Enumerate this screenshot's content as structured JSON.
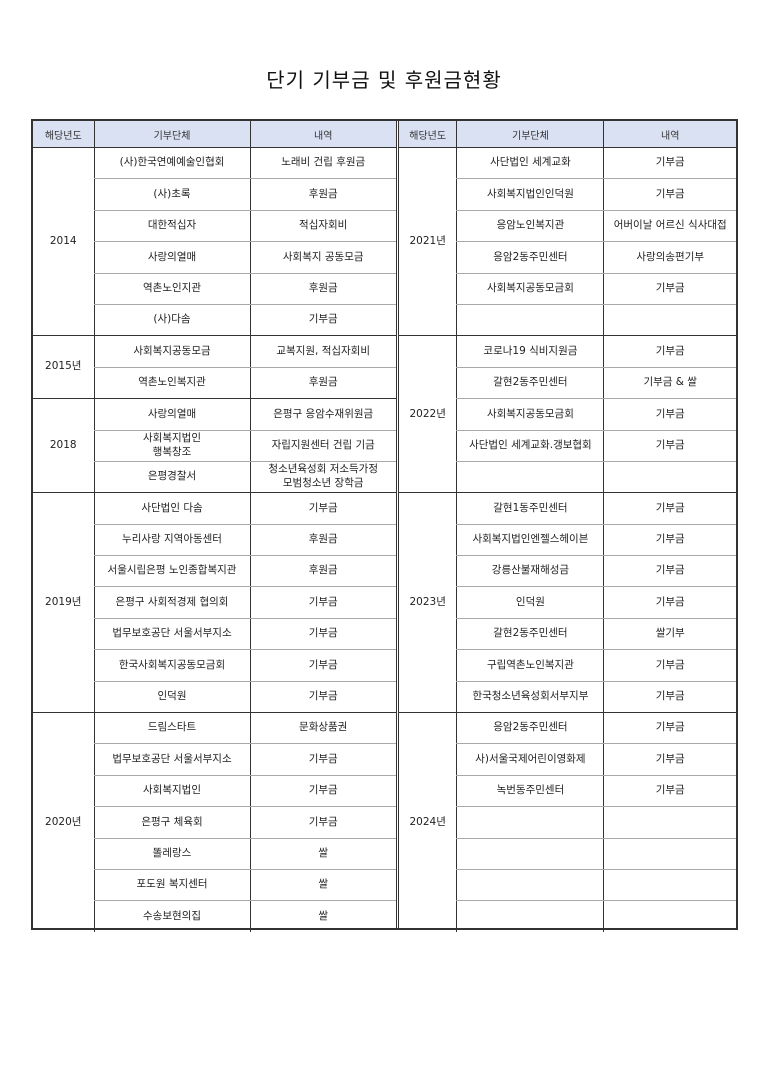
{
  "title": "단기 기부금 및 후원금현황",
  "headers": [
    "해당년도",
    "기부단체",
    "내역"
  ],
  "left": [
    {
      "year": "2014",
      "rows": [
        [
          "(사)한국연예예술인협회",
          "노래비 건립 후원금"
        ],
        [
          "(사)초록",
          "후원금"
        ],
        [
          "대한적십자",
          "적십자회비"
        ],
        [
          "사랑의열매",
          "사회복지 공동모금"
        ],
        [
          "역촌노인지관",
          "후원금"
        ],
        [
          "(사)다솜",
          "기부금"
        ]
      ]
    },
    {
      "year": "2015년",
      "rows": [
        [
          "사회복지공동모금",
          "교복지원, 적십자회비"
        ],
        [
          "역촌노인복지관",
          "후원금"
        ]
      ]
    },
    {
      "year": "2018",
      "rows": [
        [
          "사랑의열매",
          "은평구 응암수재위원금"
        ],
        [
          "사회복지법인\n행복창조",
          "자립지원센터 건립 기금"
        ],
        [
          "은평경찰서",
          "청소년육성회 저소득가정\n모범청소년 장학금"
        ]
      ]
    },
    {
      "year": "2019년",
      "rows": [
        [
          "사단법인 다솜",
          "기부금"
        ],
        [
          "누리사랑 지역아동센터",
          "후원금"
        ],
        [
          "서울시립은평 노인종합복지관",
          "후원금"
        ],
        [
          "은평구 사회적경제 협의회",
          "기부금"
        ],
        [
          "법무보호공단 서울서부지소",
          "기부금"
        ],
        [
          "한국사회복지공동모금회",
          "기부금"
        ],
        [
          "인덕원",
          "기부금"
        ]
      ]
    },
    {
      "year": "2020년",
      "rows": [
        [
          "드림스타트",
          "문화상품권"
        ],
        [
          "법무보호공단 서울서부지소",
          "기부금"
        ],
        [
          "사회복지법인",
          "기부금"
        ],
        [
          "은평구 체육회",
          "기부금"
        ],
        [
          "똘레랑스",
          "쌀"
        ],
        [
          "포도원 복지센터",
          "쌀"
        ],
        [
          "수송보현의집",
          "쌀"
        ]
      ]
    }
  ],
  "right": [
    {
      "year": "2021년",
      "rows": [
        [
          "사단법인 세계교화",
          "기부금"
        ],
        [
          "사회복지법인인덕원",
          "기부금"
        ],
        [
          "응암노인복지관",
          "어버이날 어르신 식사대접"
        ],
        [
          "응암2동주민센터",
          "사랑의송편기부"
        ],
        [
          "사회복지공동모금회",
          "기부금"
        ],
        [
          "",
          ""
        ]
      ]
    },
    {
      "year": "2022년",
      "rows": [
        [
          "코로나19 식비지원금",
          "기부금"
        ],
        [
          "갈현2동주민센터",
          "기부금 & 쌀"
        ],
        [
          "사회복지공동모금회",
          "기부금"
        ],
        [
          "사단법인 세계교화.갱보협회",
          "기부금"
        ],
        [
          "",
          ""
        ]
      ]
    },
    {
      "year": "2023년",
      "rows": [
        [
          "갈현1동주민센터",
          "기부금"
        ],
        [
          "사회복지법인엔젤스헤이븐",
          "기부금"
        ],
        [
          "강릉산불재해성금",
          "기부금"
        ],
        [
          "인덕원",
          "기부금"
        ],
        [
          "갈현2동주민센터",
          "쌀기부"
        ],
        [
          "구립역촌노인복지관",
          "기부금"
        ],
        [
          "한국청소년육성회서부지부",
          "기부금"
        ]
      ]
    },
    {
      "year": "2024년",
      "rows": [
        [
          "응암2동주민센터",
          "기부금"
        ],
        [
          "사)서울국제어린이영화제",
          "기부금"
        ],
        [
          "녹번동주민센터",
          "기부금"
        ],
        [
          "",
          ""
        ],
        [
          "",
          ""
        ],
        [
          "",
          ""
        ],
        [
          "",
          ""
        ]
      ]
    }
  ],
  "colors": {
    "header_bg": "#d9e1f2",
    "border": "#333333"
  }
}
